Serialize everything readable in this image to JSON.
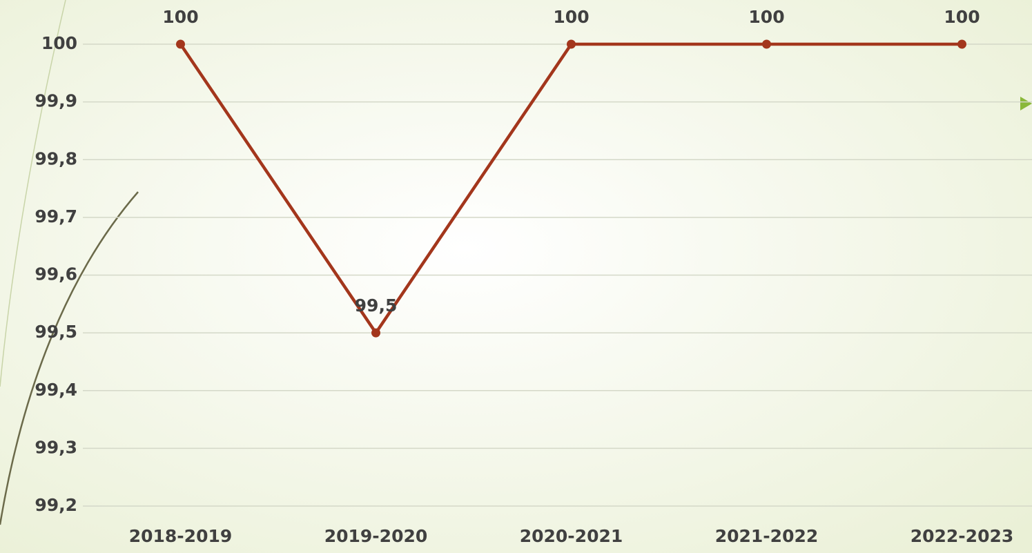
{
  "chart_data": {
    "type": "line",
    "categories": [
      "2018-2019",
      "2019-2020",
      "2020-2021",
      "2021-2022",
      "2022-2023"
    ],
    "series": [
      {
        "name": null,
        "color": "#a3361c",
        "values": [
          100,
          99.5,
          100,
          100,
          100
        ],
        "value_labels": [
          "100",
          "99,5",
          "100",
          "100",
          "100"
        ]
      }
    ],
    "ylim": [
      99.2,
      100
    ],
    "yticks": [
      {
        "value": 99.2,
        "label": "99,2"
      },
      {
        "value": 99.3,
        "label": "99,3"
      },
      {
        "value": 99.4,
        "label": "99,4"
      },
      {
        "value": 99.5,
        "label": "99,5"
      },
      {
        "value": 99.6,
        "label": "99,6"
      },
      {
        "value": 99.7,
        "label": "99,7"
      },
      {
        "value": 99.8,
        "label": "99,8"
      },
      {
        "value": 99.9,
        "label": "99,9"
      },
      100
    ],
    "grid": true
  }
}
